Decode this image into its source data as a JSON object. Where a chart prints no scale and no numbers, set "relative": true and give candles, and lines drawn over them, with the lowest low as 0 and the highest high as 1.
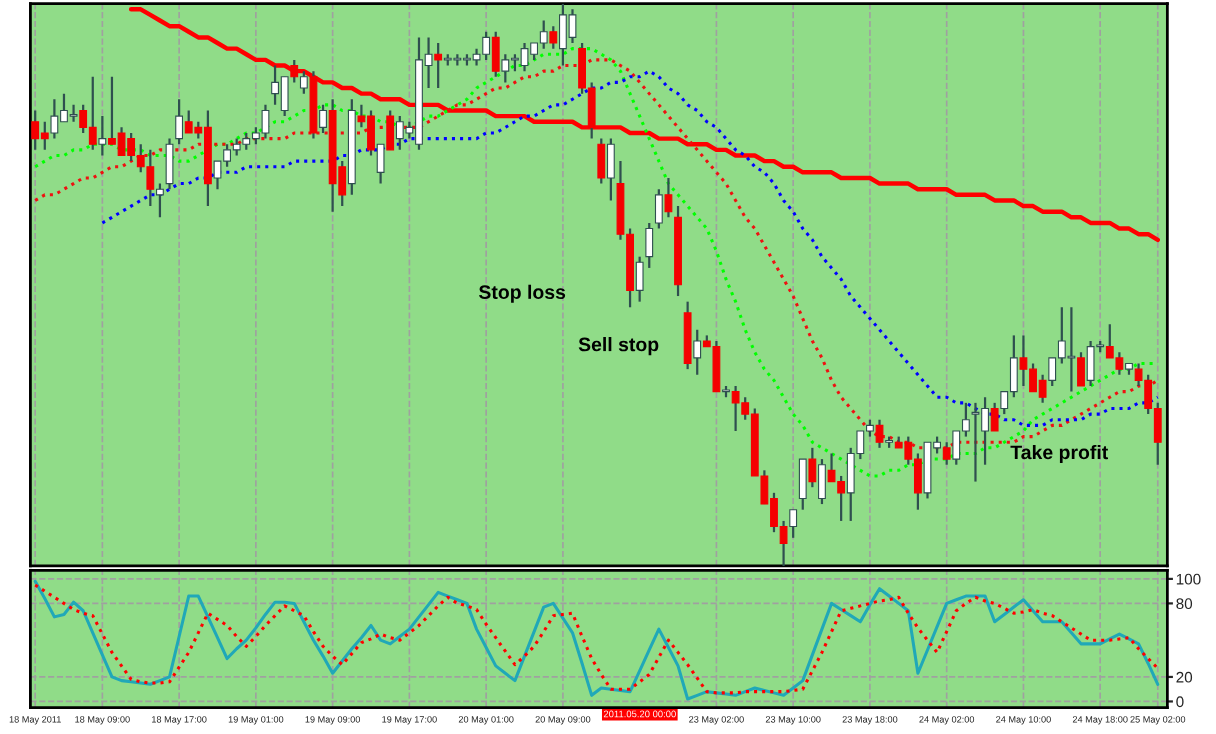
{
  "chart_data": [
    {
      "type": "candlestick",
      "relative": true,
      "grid": "x",
      "categories": [
        null,
        null,
        null,
        null,
        null,
        null,
        null,
        null,
        null,
        null,
        null,
        null,
        null,
        null,
        null,
        null,
        null,
        null,
        null,
        null,
        null,
        null,
        null,
        null,
        null,
        null,
        null,
        null,
        null,
        null,
        null,
        null,
        null,
        null,
        null,
        null,
        null,
        null,
        null,
        null,
        null,
        null,
        null,
        null,
        null,
        null,
        null,
        null,
        null,
        null,
        null,
        null,
        null,
        null,
        null,
        null,
        null,
        null,
        null,
        null,
        null,
        null,
        null,
        null,
        null,
        null,
        null,
        null,
        null,
        null,
        null,
        null,
        null,
        null,
        null,
        null,
        null,
        null,
        null,
        null,
        null,
        null,
        null,
        null,
        null,
        null,
        null,
        null,
        null,
        null,
        null,
        null,
        null,
        null,
        null,
        null,
        null,
        null,
        null,
        null,
        null,
        null,
        null,
        null,
        null,
        null,
        null,
        null,
        null,
        null,
        null,
        null,
        null,
        null,
        null,
        null,
        null,
        null
      ],
      "ohlc": [
        [
          0.79,
          0.81,
          0.74,
          0.76
        ],
        [
          0.77,
          0.79,
          0.74,
          0.76
        ],
        [
          0.77,
          0.83,
          0.76,
          0.8
        ],
        [
          0.79,
          0.84,
          0.79,
          0.81
        ],
        [
          0.8,
          0.82,
          0.79,
          0.8
        ],
        [
          0.81,
          0.82,
          0.77,
          0.78
        ],
        [
          0.78,
          0.87,
          0.74,
          0.75
        ],
        [
          0.75,
          0.8,
          0.73,
          0.76
        ],
        [
          0.76,
          0.87,
          0.75,
          0.75
        ],
        [
          0.77,
          0.78,
          0.73,
          0.73
        ],
        [
          0.76,
          0.77,
          0.72,
          0.73
        ],
        [
          0.73,
          0.75,
          0.7,
          0.71
        ],
        [
          0.71,
          0.74,
          0.64,
          0.67
        ],
        [
          0.66,
          0.68,
          0.62,
          0.67
        ],
        [
          0.68,
          0.76,
          0.67,
          0.75
        ],
        [
          0.76,
          0.83,
          0.75,
          0.8
        ],
        [
          0.79,
          0.81,
          0.77,
          0.77
        ],
        [
          0.78,
          0.79,
          0.76,
          0.77
        ],
        [
          0.78,
          0.81,
          0.64,
          0.68
        ],
        [
          0.69,
          0.72,
          0.67,
          0.72
        ],
        [
          0.72,
          0.75,
          0.71,
          0.74
        ],
        [
          0.74,
          0.76,
          0.73,
          0.75
        ],
        [
          0.75,
          0.77,
          0.74,
          0.76
        ],
        [
          0.76,
          0.78,
          0.75,
          0.77
        ],
        [
          0.77,
          0.82,
          0.76,
          0.81
        ],
        [
          0.84,
          0.89,
          0.82,
          0.86
        ],
        [
          0.81,
          0.87,
          0.8,
          0.87
        ],
        [
          0.89,
          0.9,
          0.86,
          0.87
        ],
        [
          0.85,
          0.88,
          0.84,
          0.87
        ],
        [
          0.87,
          0.88,
          0.76,
          0.77
        ],
        [
          0.78,
          0.82,
          0.77,
          0.81
        ],
        [
          0.81,
          0.83,
          0.63,
          0.68
        ],
        [
          0.71,
          0.72,
          0.64,
          0.66
        ],
        [
          0.68,
          0.83,
          0.66,
          0.81
        ],
        [
          0.8,
          0.82,
          0.78,
          0.79
        ],
        [
          0.8,
          0.81,
          0.73,
          0.74
        ],
        [
          0.7,
          0.75,
          0.68,
          0.75
        ],
        [
          0.8,
          0.81,
          0.74,
          0.74
        ],
        [
          0.76,
          0.8,
          0.74,
          0.79
        ],
        [
          0.77,
          0.79,
          0.76,
          0.78
        ],
        [
          0.75,
          0.94,
          0.74,
          0.9
        ],
        [
          0.89,
          0.94,
          0.85,
          0.91
        ],
        [
          0.91,
          0.93,
          0.85,
          0.9
        ],
        [
          0.9,
          0.91,
          0.89,
          0.9
        ],
        [
          0.9,
          0.91,
          0.89,
          0.9
        ],
        [
          0.9,
          0.91,
          0.89,
          0.9
        ],
        [
          0.9,
          0.92,
          0.89,
          0.91
        ],
        [
          0.91,
          0.95,
          0.9,
          0.94
        ],
        [
          0.94,
          0.95,
          0.87,
          0.88
        ],
        [
          0.88,
          0.91,
          0.86,
          0.9
        ],
        [
          0.9,
          0.91,
          0.88,
          0.9
        ],
        [
          0.89,
          0.93,
          0.88,
          0.92
        ],
        [
          0.91,
          0.93,
          0.9,
          0.93
        ],
        [
          0.93,
          0.97,
          0.92,
          0.95
        ],
        [
          0.95,
          0.96,
          0.92,
          0.93
        ],
        [
          0.92,
          1.0,
          0.89,
          0.98
        ],
        [
          0.94,
          0.99,
          0.93,
          0.98
        ],
        [
          0.92,
          0.93,
          0.84,
          0.85
        ],
        [
          0.85,
          0.86,
          0.76,
          0.78
        ],
        [
          0.75,
          0.76,
          0.68,
          0.69
        ],
        [
          0.69,
          0.76,
          0.65,
          0.75
        ],
        [
          0.68,
          0.72,
          0.58,
          0.59
        ],
        [
          0.59,
          0.6,
          0.46,
          0.49
        ],
        [
          0.49,
          0.55,
          0.47,
          0.54
        ],
        [
          0.55,
          0.61,
          0.53,
          0.6
        ],
        [
          0.61,
          0.67,
          0.6,
          0.66
        ],
        [
          0.66,
          0.69,
          0.62,
          0.63
        ],
        [
          0.62,
          0.64,
          0.48,
          0.5
        ],
        [
          0.45,
          0.47,
          0.35,
          0.36
        ],
        [
          0.37,
          0.42,
          0.34,
          0.4
        ],
        [
          0.4,
          0.41,
          0.39,
          0.39
        ],
        [
          0.39,
          0.4,
          0.31,
          0.31
        ],
        [
          0.31,
          0.32,
          0.3,
          0.31
        ],
        [
          0.31,
          0.32,
          0.24,
          0.29
        ],
        [
          0.29,
          0.3,
          0.26,
          0.27
        ],
        [
          0.27,
          0.28,
          0.16,
          0.16
        ],
        [
          0.16,
          0.17,
          0.11,
          0.11
        ],
        [
          0.12,
          0.13,
          0.06,
          0.07
        ],
        [
          0.07,
          0.08,
          0.0,
          0.04
        ],
        [
          0.07,
          0.1,
          0.05,
          0.1
        ],
        [
          0.12,
          0.19,
          0.1,
          0.19
        ],
        [
          0.19,
          0.21,
          0.14,
          0.15
        ],
        [
          0.12,
          0.19,
          0.11,
          0.18
        ],
        [
          0.17,
          0.2,
          0.15,
          0.15
        ],
        [
          0.15,
          0.16,
          0.08,
          0.13
        ],
        [
          0.13,
          0.21,
          0.08,
          0.2
        ],
        [
          0.2,
          0.24,
          0.19,
          0.24
        ],
        [
          0.24,
          0.26,
          0.23,
          0.25
        ],
        [
          0.25,
          0.26,
          0.21,
          0.22
        ],
        [
          0.22,
          0.23,
          0.21,
          0.22
        ],
        [
          0.22,
          0.23,
          0.21,
          0.21
        ],
        [
          0.22,
          0.23,
          0.18,
          0.19
        ],
        [
          0.19,
          0.2,
          0.1,
          0.13
        ],
        [
          0.13,
          0.22,
          0.12,
          0.22
        ],
        [
          0.21,
          0.23,
          0.2,
          0.22
        ],
        [
          0.21,
          0.22,
          0.18,
          0.19
        ],
        [
          0.19,
          0.24,
          0.18,
          0.24
        ],
        [
          0.24,
          0.29,
          0.23,
          0.26
        ],
        [
          0.27,
          0.29,
          0.15,
          0.27
        ],
        [
          0.24,
          0.3,
          0.18,
          0.28
        ],
        [
          0.28,
          0.29,
          0.24,
          0.24
        ],
        [
          0.28,
          0.31,
          0.27,
          0.31
        ],
        [
          0.31,
          0.41,
          0.3,
          0.37
        ],
        [
          0.37,
          0.41,
          0.32,
          0.35
        ],
        [
          0.35,
          0.36,
          0.31,
          0.31
        ],
        [
          0.33,
          0.34,
          0.29,
          0.3
        ],
        [
          0.33,
          0.37,
          0.32,
          0.37
        ],
        [
          0.37,
          0.46,
          0.36,
          0.4
        ],
        [
          0.37,
          0.46,
          0.31,
          0.37
        ],
        [
          0.37,
          0.38,
          0.32,
          0.32
        ],
        [
          0.33,
          0.4,
          0.32,
          0.39
        ],
        [
          0.39,
          0.4,
          0.38,
          0.39
        ],
        [
          0.39,
          0.43,
          0.37,
          0.37
        ],
        [
          0.37,
          0.38,
          0.34,
          0.35
        ],
        [
          0.35,
          0.36,
          0.34,
          0.36
        ],
        [
          0.35,
          0.36,
          0.32,
          0.33
        ],
        [
          0.33,
          0.34,
          0.27,
          0.28
        ],
        [
          0.28,
          0.29,
          0.18,
          0.22
        ]
      ],
      "series": [
        {
          "type": "line",
          "color": "#ff0000",
          "line_style": "solid",
          "values": [
            null,
            null,
            null,
            null,
            null,
            null,
            null,
            null,
            null,
            null,
            0.99,
            0.99,
            0.98,
            0.97,
            0.96,
            0.96,
            0.95,
            0.94,
            0.94,
            0.93,
            0.92,
            0.92,
            0.91,
            0.9,
            0.9,
            0.89,
            0.89,
            0.88,
            0.88,
            0.87,
            0.86,
            0.86,
            0.85,
            0.85,
            0.84,
            0.84,
            0.83,
            0.83,
            0.83,
            0.82,
            0.82,
            0.82,
            0.82,
            0.81,
            0.81,
            0.81,
            0.81,
            0.81,
            0.8,
            0.8,
            0.8,
            0.8,
            0.79,
            0.79,
            0.79,
            0.79,
            0.79,
            0.78,
            0.78,
            0.78,
            0.78,
            0.78,
            0.77,
            0.77,
            0.77,
            0.76,
            0.76,
            0.76,
            0.75,
            0.75,
            0.75,
            0.74,
            0.74,
            0.73,
            0.73,
            0.73,
            0.72,
            0.72,
            0.71,
            0.71,
            0.7,
            0.7,
            0.7,
            0.7,
            0.69,
            0.69,
            0.69,
            0.69,
            0.68,
            0.68,
            0.68,
            0.68,
            0.67,
            0.67,
            0.67,
            0.67,
            0.66,
            0.66,
            0.66,
            0.66,
            0.65,
            0.65,
            0.65,
            0.64,
            0.64,
            0.63,
            0.63,
            0.63,
            0.62,
            0.62,
            0.61,
            0.61,
            0.61,
            0.6,
            0.6,
            0.59,
            0.59,
            0.58
          ]
        },
        {
          "type": "line",
          "color": "#00ff00",
          "line_style": "dotted",
          "values": [
            0.71,
            0.72,
            0.73,
            0.73,
            0.74,
            0.74,
            0.75,
            0.75,
            0.75,
            0.74,
            0.74,
            0.74,
            0.73,
            0.73,
            0.73,
            0.72,
            0.72,
            0.73,
            0.74,
            0.75,
            0.75,
            0.76,
            0.77,
            0.77,
            0.78,
            0.79,
            0.79,
            0.8,
            0.81,
            0.81,
            0.82,
            0.82,
            0.81,
            0.81,
            0.8,
            0.8,
            0.79,
            0.79,
            0.78,
            0.78,
            0.79,
            0.8,
            0.8,
            0.81,
            0.82,
            0.83,
            0.85,
            0.86,
            0.87,
            0.88,
            0.89,
            0.89,
            0.9,
            0.91,
            0.91,
            0.91,
            0.92,
            0.92,
            0.92,
            0.91,
            0.9,
            0.88,
            0.84,
            0.8,
            0.76,
            0.72,
            0.68,
            0.66,
            0.64,
            0.62,
            0.6,
            0.56,
            0.51,
            0.47,
            0.42,
            0.38,
            0.35,
            0.33,
            0.3,
            0.27,
            0.25,
            0.22,
            0.21,
            0.2,
            0.19,
            0.18,
            0.17,
            0.16,
            0.16,
            0.17,
            0.17,
            0.18,
            0.18,
            0.19,
            0.19,
            0.19,
            0.2,
            0.2,
            0.2,
            0.21,
            0.21,
            0.22,
            0.23,
            0.24,
            0.26,
            0.27,
            0.28,
            0.29,
            0.3,
            0.31,
            0.32,
            0.33,
            0.34,
            0.35,
            0.35,
            0.36,
            0.36,
            0.36
          ]
        },
        {
          "type": "line",
          "color": "#ee1111",
          "line_style": "dotted",
          "values": [
            0.65,
            0.66,
            0.66,
            0.67,
            0.68,
            0.69,
            0.69,
            0.7,
            0.71,
            0.71,
            0.72,
            0.73,
            0.73,
            0.74,
            0.74,
            0.74,
            0.74,
            0.75,
            0.75,
            0.75,
            0.75,
            0.75,
            0.76,
            0.76,
            0.76,
            0.76,
            0.76,
            0.77,
            0.77,
            0.77,
            0.77,
            0.77,
            0.77,
            0.77,
            0.77,
            0.78,
            0.78,
            0.78,
            0.78,
            0.78,
            0.78,
            0.79,
            0.8,
            0.81,
            0.82,
            0.82,
            0.83,
            0.84,
            0.85,
            0.85,
            0.86,
            0.87,
            0.87,
            0.88,
            0.88,
            0.89,
            0.89,
            0.89,
            0.9,
            0.9,
            0.9,
            0.89,
            0.88,
            0.86,
            0.84,
            0.82,
            0.8,
            0.78,
            0.76,
            0.74,
            0.72,
            0.7,
            0.68,
            0.65,
            0.62,
            0.6,
            0.57,
            0.54,
            0.51,
            0.48,
            0.44,
            0.4,
            0.37,
            0.33,
            0.3,
            0.28,
            0.26,
            0.24,
            0.23,
            0.23,
            0.22,
            0.22,
            0.21,
            0.21,
            0.21,
            0.21,
            0.22,
            0.22,
            0.22,
            0.22,
            0.22,
            0.22,
            0.22,
            0.23,
            0.23,
            0.24,
            0.25,
            0.25,
            0.26,
            0.27,
            0.28,
            0.29,
            0.3,
            0.31,
            0.31,
            0.32,
            0.32,
            0.33
          ]
        },
        {
          "type": "line",
          "color": "#0000ff",
          "line_style": "dotted",
          "values": [
            null,
            null,
            null,
            null,
            null,
            null,
            null,
            0.61,
            0.62,
            0.63,
            0.64,
            0.65,
            0.66,
            0.66,
            0.67,
            0.68,
            0.68,
            0.69,
            0.69,
            0.7,
            0.7,
            0.7,
            0.71,
            0.71,
            0.71,
            0.71,
            0.71,
            0.72,
            0.72,
            0.72,
            0.72,
            0.72,
            0.73,
            0.73,
            0.74,
            0.74,
            0.74,
            0.75,
            0.75,
            0.76,
            0.76,
            0.76,
            0.76,
            0.76,
            0.76,
            0.76,
            0.76,
            0.77,
            0.77,
            0.78,
            0.79,
            0.8,
            0.8,
            0.81,
            0.82,
            0.82,
            0.83,
            0.84,
            0.85,
            0.85,
            0.86,
            0.86,
            0.87,
            0.87,
            0.88,
            0.87,
            0.85,
            0.84,
            0.82,
            0.81,
            0.79,
            0.78,
            0.76,
            0.74,
            0.73,
            0.71,
            0.7,
            0.68,
            0.65,
            0.63,
            0.6,
            0.58,
            0.55,
            0.53,
            0.51,
            0.48,
            0.46,
            0.44,
            0.42,
            0.4,
            0.38,
            0.36,
            0.34,
            0.32,
            0.3,
            0.3,
            0.29,
            0.29,
            0.28,
            0.27,
            0.27,
            0.26,
            0.26,
            0.25,
            0.25,
            0.25,
            0.26,
            0.26,
            0.26,
            0.26,
            0.27,
            0.27,
            0.28,
            0.28,
            0.28,
            0.29,
            0.29,
            0.3
          ]
        }
      ],
      "annotations": [
        "Stop loss",
        "Sell stop",
        "Take profit"
      ]
    },
    {
      "type": "line",
      "grid": true,
      "categories": [
        "18 May 2011",
        null,
        null,
        null,
        null,
        null,
        null,
        "18 May 09:00",
        null,
        null,
        null,
        null,
        null,
        null,
        null,
        "18 May 17:00",
        null,
        null,
        null,
        null,
        null,
        null,
        null,
        "19 May 01:00",
        null,
        null,
        null,
        null,
        null,
        null,
        null,
        "19 May 09:00",
        null,
        null,
        null,
        null,
        null,
        null,
        null,
        "19 May 17:00",
        null,
        null,
        null,
        null,
        null,
        null,
        null,
        "20 May 01:00",
        null,
        null,
        null,
        null,
        null,
        null,
        null,
        "20 May 09:00",
        null,
        null,
        null,
        null,
        null,
        null,
        null,
        null,
        null,
        null,
        null,
        null,
        null,
        null,
        null,
        "23 May 02:00",
        null,
        null,
        null,
        null,
        null,
        null,
        null,
        "23 May 10:00",
        null,
        null,
        null,
        null,
        null,
        null,
        null,
        "23 May 18:00",
        null,
        null,
        null,
        null,
        null,
        null,
        null,
        "24 May 02:00",
        null,
        null,
        null,
        null,
        null,
        null,
        null,
        "24 May 10:00",
        null,
        null,
        null,
        null,
        null,
        null,
        null,
        "24 May 18:00",
        null,
        null,
        null,
        null,
        null,
        "25 May 02:00"
      ],
      "ylim": [
        -5,
        107
      ],
      "yticks": [
        0,
        20,
        80,
        100
      ],
      "series": [
        {
          "color": "#20a8b8",
          "line_style": "solid",
          "values": [
            98,
            84,
            69,
            71,
            81,
            74,
            56,
            38,
            20,
            17,
            16,
            15,
            14,
            17,
            20,
            53,
            86,
            86,
            69,
            52,
            35,
            43,
            50,
            60,
            71,
            81,
            81,
            80,
            65,
            50,
            37,
            23,
            33,
            43,
            52,
            62,
            50,
            47,
            53,
            59,
            69,
            79,
            89,
            86,
            83,
            80,
            59,
            44,
            29,
            23,
            17,
            37,
            57,
            77,
            80,
            68,
            56,
            31,
            5,
            11,
            10,
            9,
            8,
            25,
            42,
            59,
            44,
            29,
            2,
            5,
            8,
            7,
            6,
            5,
            8,
            11,
            9,
            7,
            5,
            11,
            17,
            38,
            59,
            80,
            75,
            70,
            65,
            79,
            92,
            86,
            80,
            74,
            23,
            42,
            61,
            80,
            83,
            86,
            86,
            86,
            65,
            71,
            77,
            83,
            74,
            65,
            65,
            65,
            56,
            47,
            47,
            47,
            51,
            55,
            51,
            47,
            31,
            14
          ]
        },
        {
          "color": "#ff0000",
          "line_style": "dotted",
          "values": [
            95,
            90,
            85,
            80,
            75,
            72,
            70,
            55,
            40,
            29,
            18,
            16,
            15,
            15,
            16,
            28,
            40,
            56,
            72,
            67,
            62,
            53,
            45,
            53,
            62,
            70,
            78,
            74,
            70,
            57,
            45,
            37,
            30,
            39,
            48,
            51,
            55,
            52,
            50,
            56,
            62,
            70,
            78,
            85,
            80,
            78,
            75,
            63,
            52,
            41,
            30,
            37,
            45,
            57,
            70,
            71,
            72,
            53,
            35,
            22,
            10,
            10,
            10,
            16,
            22,
            36,
            50,
            40,
            30,
            19,
            8,
            7,
            7,
            7,
            8,
            8,
            8,
            8,
            8,
            9,
            10,
            25,
            40,
            57,
            74,
            76,
            78,
            80,
            82,
            83,
            85,
            72,
            60,
            50,
            40,
            57,
            74,
            80,
            85,
            82,
            80,
            76,
            72,
            73,
            75,
            72,
            70,
            65,
            60,
            55,
            50,
            50,
            50,
            51,
            52,
            43,
            35,
            27
          ]
        }
      ],
      "annotations": [
        "2011.05.20 00:00"
      ]
    }
  ]
}
